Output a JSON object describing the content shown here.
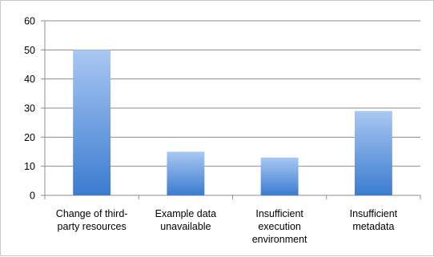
{
  "chart_data": {
    "type": "bar",
    "title": "",
    "xlabel": "",
    "ylabel": "",
    "categories": [
      [
        "Change of third-",
        "party resources"
      ],
      [
        "Example data",
        "unavailable"
      ],
      [
        "Insufficient",
        "execution",
        "environment"
      ],
      [
        "Insufficient",
        "metadata"
      ]
    ],
    "values": [
      50,
      15,
      13,
      29
    ],
    "ylim": [
      0,
      60
    ],
    "yticks": [
      0,
      10,
      20,
      30,
      40,
      50,
      60
    ],
    "grid": true,
    "legend": "none",
    "colors": {
      "bar_top": "#a9c8f2",
      "bar_bottom": "#3b7bd0",
      "grid": "#8c8c8c",
      "axis": "#8c8c8c"
    }
  }
}
